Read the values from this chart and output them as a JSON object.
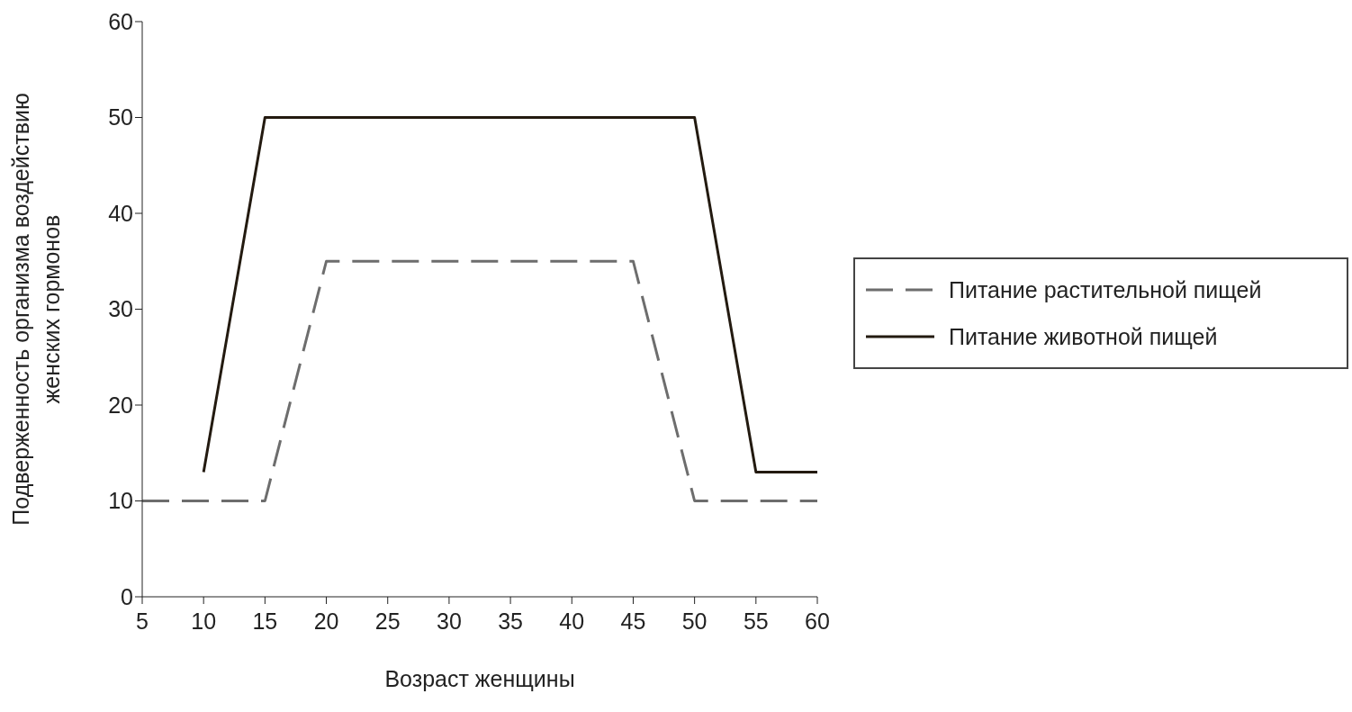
{
  "chart_data": {
    "type": "line",
    "xlabel": "Возраст женщины",
    "ylabel": "Подверженность организма воздействию женских гормонов",
    "xlim": [
      5,
      60
    ],
    "xticks": [
      5,
      10,
      15,
      20,
      25,
      30,
      35,
      40,
      45,
      50,
      55,
      60
    ],
    "ylim": [
      0,
      60
    ],
    "yticks": [
      0,
      10,
      20,
      30,
      40,
      50,
      60
    ],
    "grid": false,
    "legend": "right",
    "marker": "none",
    "series": [
      {
        "name": "Питание растительной пищей",
        "color": "#6d6d6d",
        "line_style": "dashed",
        "x": [
          5,
          15,
          20,
          45,
          50,
          60
        ],
        "values": [
          10,
          10,
          35,
          35,
          10,
          10
        ]
      },
      {
        "name": "Питание животной пищей",
        "color": "#231a10",
        "line_style": "solid",
        "x": [
          10,
          15,
          50,
          55,
          60
        ],
        "values": [
          13,
          50,
          50,
          13,
          13
        ]
      }
    ]
  }
}
